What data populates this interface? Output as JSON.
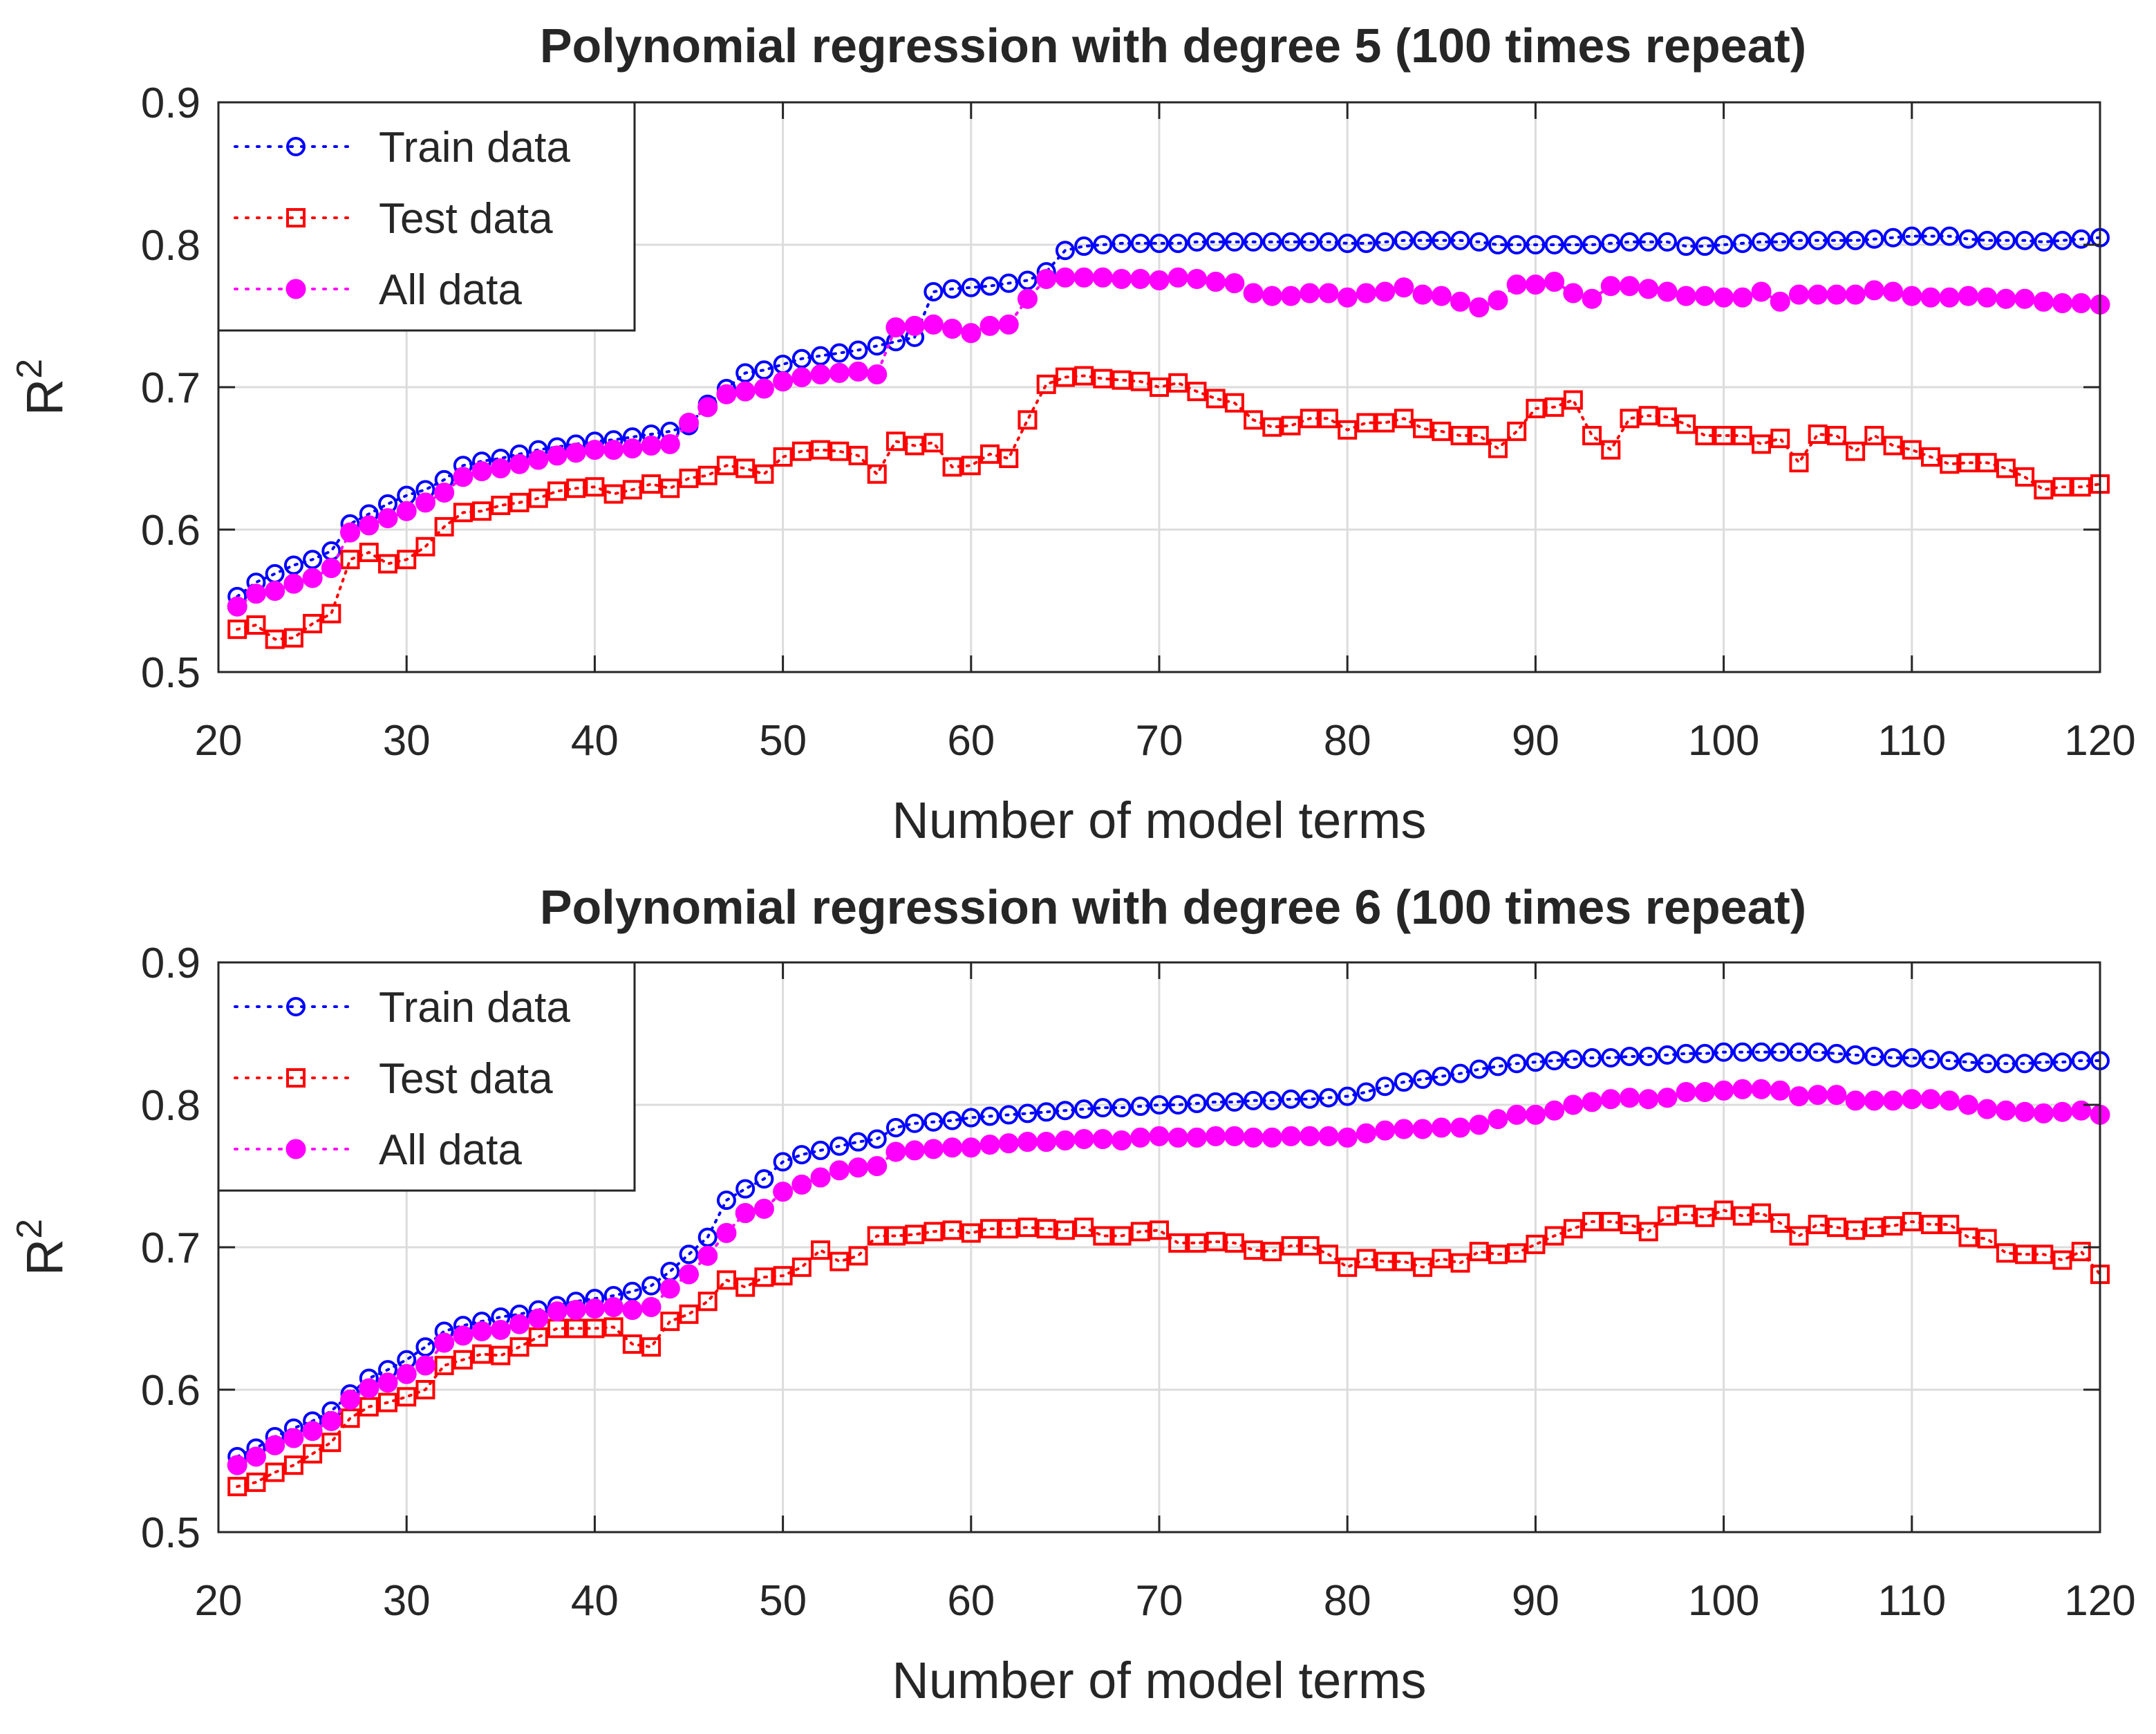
{
  "chart_data": [
    {
      "type": "line",
      "title": "Polynomial regression with degree 5 (100 times repeat)",
      "xlabel": "Number of model terms",
      "ylabel": "R",
      "ylabel_superscript": "2",
      "xlim": [
        20,
        120
      ],
      "ylim": [
        0.5,
        0.9
      ],
      "xticks": [
        20,
        30,
        40,
        50,
        60,
        70,
        80,
        90,
        100,
        110,
        120
      ],
      "yticks": [
        0.5,
        0.6,
        0.7,
        0.8,
        0.9
      ],
      "grid": true,
      "legend_position": "top-left",
      "x_start": 21,
      "x_step": 1,
      "series": [
        {
          "name": "Train data",
          "color": "#0000ff",
          "marker": "circle-open",
          "values": [
            0.553,
            0.563,
            0.569,
            0.575,
            0.579,
            0.585,
            0.604,
            0.611,
            0.618,
            0.624,
            0.628,
            0.635,
            0.645,
            0.648,
            0.65,
            0.653,
            0.656,
            0.658,
            0.66,
            0.662,
            0.663,
            0.665,
            0.667,
            0.669,
            0.673,
            0.688,
            0.699,
            0.71,
            0.712,
            0.716,
            0.72,
            0.722,
            0.724,
            0.726,
            0.729,
            0.732,
            0.735,
            0.767,
            0.769,
            0.77,
            0.771,
            0.773,
            0.775,
            0.781,
            0.796,
            0.799,
            0.8,
            0.801,
            0.801,
            0.801,
            0.801,
            0.802,
            0.802,
            0.802,
            0.802,
            0.802,
            0.802,
            0.802,
            0.802,
            0.801,
            0.801,
            0.802,
            0.803,
            0.803,
            0.803,
            0.803,
            0.802,
            0.8,
            0.8,
            0.8,
            0.8,
            0.8,
            0.8,
            0.801,
            0.802,
            0.802,
            0.802,
            0.799,
            0.799,
            0.8,
            0.801,
            0.802,
            0.802,
            0.803,
            0.803,
            0.803,
            0.803,
            0.804,
            0.805,
            0.806,
            0.806,
            0.806,
            0.804,
            0.803,
            0.803,
            0.803,
            0.802,
            0.803,
            0.804,
            0.805
          ]
        },
        {
          "name": "Test data",
          "color": "#ff0000",
          "marker": "square-open",
          "values": [
            0.53,
            0.533,
            0.523,
            0.524,
            0.534,
            0.541,
            0.579,
            0.584,
            0.576,
            0.579,
            0.588,
            0.602,
            0.612,
            0.613,
            0.617,
            0.619,
            0.622,
            0.627,
            0.629,
            0.63,
            0.625,
            0.628,
            0.632,
            0.629,
            0.636,
            0.638,
            0.645,
            0.643,
            0.639,
            0.651,
            0.655,
            0.656,
            0.655,
            0.652,
            0.639,
            0.662,
            0.659,
            0.661,
            0.644,
            0.645,
            0.653,
            0.65,
            0.677,
            0.702,
            0.707,
            0.708,
            0.706,
            0.705,
            0.704,
            0.7,
            0.703,
            0.697,
            0.692,
            0.689,
            0.677,
            0.672,
            0.673,
            0.678,
            0.678,
            0.67,
            0.675,
            0.675,
            0.678,
            0.671,
            0.669,
            0.666,
            0.666,
            0.657,
            0.669,
            0.685,
            0.686,
            0.691,
            0.666,
            0.656,
            0.678,
            0.68,
            0.679,
            0.674,
            0.666,
            0.666,
            0.666,
            0.66,
            0.664,
            0.647,
            0.667,
            0.666,
            0.655,
            0.666,
            0.659,
            0.656,
            0.651,
            0.646,
            0.647,
            0.647,
            0.643,
            0.637,
            0.628,
            0.63,
            0.63,
            0.632
          ]
        },
        {
          "name": "All data",
          "color": "#ff00ff",
          "marker": "circle-filled",
          "values": [
            0.546,
            0.555,
            0.557,
            0.562,
            0.566,
            0.573,
            0.598,
            0.603,
            0.608,
            0.613,
            0.619,
            0.626,
            0.637,
            0.641,
            0.643,
            0.646,
            0.649,
            0.652,
            0.654,
            0.656,
            0.656,
            0.657,
            0.659,
            0.66,
            0.675,
            0.686,
            0.695,
            0.697,
            0.699,
            0.704,
            0.707,
            0.709,
            0.71,
            0.711,
            0.709,
            0.742,
            0.743,
            0.744,
            0.741,
            0.738,
            0.743,
            0.744,
            0.762,
            0.776,
            0.777,
            0.777,
            0.777,
            0.776,
            0.776,
            0.775,
            0.777,
            0.776,
            0.774,
            0.773,
            0.766,
            0.764,
            0.764,
            0.766,
            0.766,
            0.763,
            0.766,
            0.767,
            0.77,
            0.765,
            0.764,
            0.76,
            0.756,
            0.761,
            0.772,
            0.772,
            0.774,
            0.766,
            0.762,
            0.771,
            0.771,
            0.769,
            0.767,
            0.764,
            0.764,
            0.763,
            0.763,
            0.767,
            0.76,
            0.765,
            0.765,
            0.765,
            0.765,
            0.768,
            0.767,
            0.764,
            0.763,
            0.763,
            0.764,
            0.763,
            0.762,
            0.762,
            0.76,
            0.759,
            0.759,
            0.758
          ]
        }
      ]
    },
    {
      "type": "line",
      "title": "Polynomial regression with degree 6 (100 times repeat)",
      "xlabel": "Number of model terms",
      "ylabel": "R",
      "ylabel_superscript": "2",
      "xlim": [
        20,
        120
      ],
      "ylim": [
        0.5,
        0.9
      ],
      "xticks": [
        20,
        30,
        40,
        50,
        60,
        70,
        80,
        90,
        100,
        110,
        120
      ],
      "yticks": [
        0.5,
        0.6,
        0.7,
        0.8,
        0.9
      ],
      "grid": true,
      "legend_position": "top-left",
      "x_start": 21,
      "x_step": 1,
      "series": [
        {
          "name": "Train data",
          "color": "#0000ff",
          "marker": "circle-open",
          "values": [
            0.553,
            0.559,
            0.567,
            0.573,
            0.578,
            0.585,
            0.597,
            0.608,
            0.614,
            0.621,
            0.63,
            0.641,
            0.645,
            0.648,
            0.651,
            0.653,
            0.656,
            0.659,
            0.662,
            0.664,
            0.666,
            0.669,
            0.673,
            0.683,
            0.695,
            0.707,
            0.733,
            0.741,
            0.748,
            0.76,
            0.765,
            0.768,
            0.771,
            0.774,
            0.776,
            0.784,
            0.787,
            0.788,
            0.789,
            0.791,
            0.792,
            0.793,
            0.794,
            0.795,
            0.796,
            0.797,
            0.798,
            0.798,
            0.799,
            0.8,
            0.8,
            0.801,
            0.802,
            0.802,
            0.803,
            0.803,
            0.804,
            0.804,
            0.805,
            0.806,
            0.809,
            0.813,
            0.816,
            0.818,
            0.82,
            0.822,
            0.825,
            0.827,
            0.829,
            0.83,
            0.831,
            0.832,
            0.833,
            0.833,
            0.834,
            0.834,
            0.835,
            0.836,
            0.836,
            0.837,
            0.837,
            0.837,
            0.837,
            0.837,
            0.837,
            0.836,
            0.835,
            0.834,
            0.833,
            0.833,
            0.832,
            0.831,
            0.83,
            0.829,
            0.829,
            0.829,
            0.83,
            0.83,
            0.831,
            0.831
          ]
        },
        {
          "name": "Test data",
          "color": "#ff0000",
          "marker": "square-open",
          "values": [
            0.532,
            0.535,
            0.542,
            0.547,
            0.555,
            0.563,
            0.58,
            0.588,
            0.591,
            0.595,
            0.6,
            0.617,
            0.621,
            0.625,
            0.624,
            0.63,
            0.637,
            0.643,
            0.643,
            0.643,
            0.644,
            0.632,
            0.63,
            0.648,
            0.653,
            0.662,
            0.677,
            0.672,
            0.679,
            0.68,
            0.686,
            0.698,
            0.69,
            0.694,
            0.708,
            0.708,
            0.709,
            0.711,
            0.712,
            0.71,
            0.713,
            0.713,
            0.714,
            0.713,
            0.712,
            0.714,
            0.708,
            0.708,
            0.711,
            0.712,
            0.703,
            0.703,
            0.704,
            0.703,
            0.698,
            0.697,
            0.701,
            0.701,
            0.695,
            0.686,
            0.692,
            0.69,
            0.69,
            0.686,
            0.692,
            0.689,
            0.697,
            0.695,
            0.696,
            0.702,
            0.708,
            0.713,
            0.718,
            0.718,
            0.716,
            0.711,
            0.722,
            0.723,
            0.721,
            0.726,
            0.722,
            0.724,
            0.717,
            0.708,
            0.716,
            0.714,
            0.712,
            0.714,
            0.715,
            0.718,
            0.716,
            0.716,
            0.707,
            0.706,
            0.696,
            0.695,
            0.695,
            0.691,
            0.697,
            0.681
          ]
        },
        {
          "name": "All data",
          "color": "#ff00ff",
          "marker": "circle-filled",
          "values": [
            0.547,
            0.553,
            0.561,
            0.566,
            0.571,
            0.578,
            0.593,
            0.601,
            0.605,
            0.611,
            0.617,
            0.633,
            0.638,
            0.641,
            0.642,
            0.646,
            0.65,
            0.655,
            0.656,
            0.657,
            0.658,
            0.656,
            0.658,
            0.671,
            0.681,
            0.694,
            0.71,
            0.724,
            0.727,
            0.739,
            0.744,
            0.749,
            0.754,
            0.756,
            0.757,
            0.767,
            0.768,
            0.769,
            0.77,
            0.77,
            0.772,
            0.773,
            0.774,
            0.774,
            0.775,
            0.776,
            0.776,
            0.775,
            0.777,
            0.778,
            0.777,
            0.777,
            0.778,
            0.778,
            0.777,
            0.777,
            0.778,
            0.778,
            0.778,
            0.777,
            0.78,
            0.782,
            0.783,
            0.783,
            0.784,
            0.784,
            0.786,
            0.79,
            0.793,
            0.793,
            0.796,
            0.8,
            0.802,
            0.804,
            0.805,
            0.804,
            0.805,
            0.809,
            0.809,
            0.81,
            0.811,
            0.811,
            0.81,
            0.806,
            0.807,
            0.807,
            0.803,
            0.803,
            0.803,
            0.804,
            0.804,
            0.803,
            0.8,
            0.797,
            0.796,
            0.795,
            0.794,
            0.795,
            0.796,
            0.793
          ]
        }
      ]
    }
  ]
}
